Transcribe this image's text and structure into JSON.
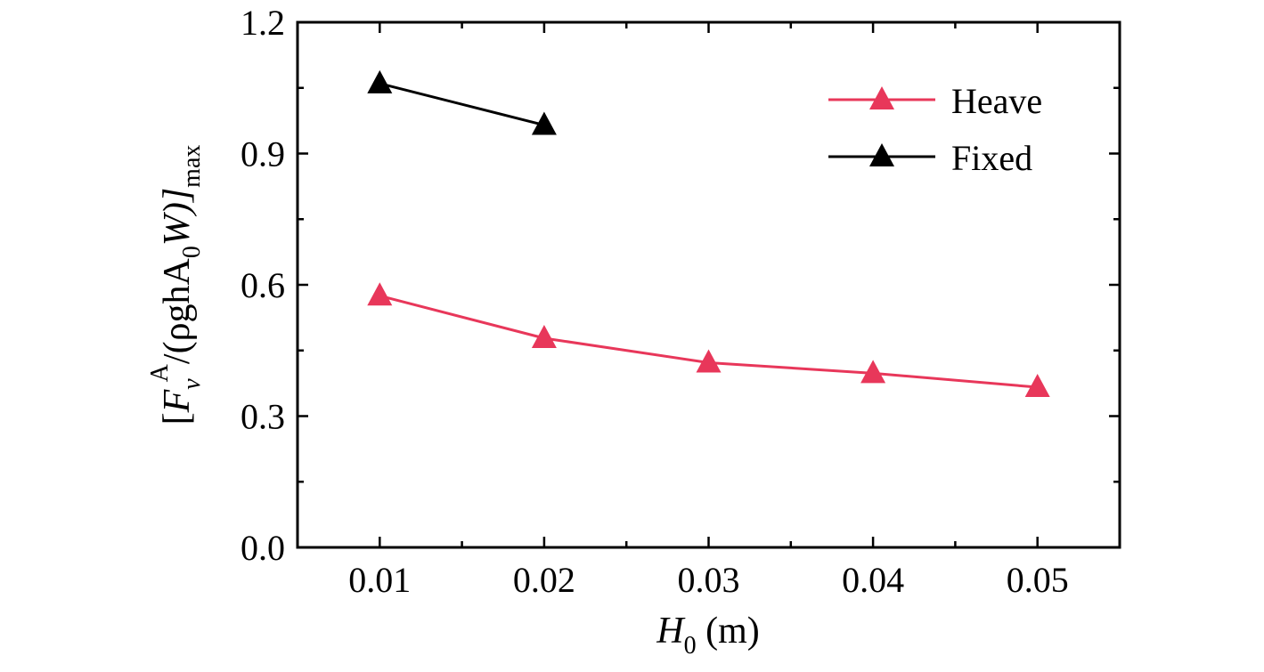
{
  "chart_data": {
    "type": "line",
    "x": [
      0.01,
      0.02,
      0.03,
      0.04,
      0.05
    ],
    "series": [
      {
        "name": "Heave",
        "color": "#e8375a",
        "marker": "triangle",
        "values": [
          0.575,
          0.478,
          0.422,
          0.398,
          0.366
        ]
      },
      {
        "name": "Fixed",
        "color": "#000000",
        "marker": "triangle",
        "values": [
          1.06,
          0.965,
          null,
          null,
          null
        ]
      }
    ],
    "xlim": [
      0.005,
      0.055
    ],
    "ylim": [
      0.0,
      1.2
    ],
    "xticks": [
      "0.01",
      "0.02",
      "0.03",
      "0.04",
      "0.05"
    ],
    "yticks": [
      "0.0",
      "0.3",
      "0.6",
      "0.9",
      "1.2"
    ],
    "xticks_minor": [
      0.015,
      0.025,
      0.035,
      0.045
    ],
    "yticks_minor": [
      0.15,
      0.45,
      0.75,
      1.05
    ],
    "xlabel": {
      "main": "H",
      "sub": "0",
      "unit": " (m)"
    },
    "ylabel": {
      "open": "[",
      "F": "F",
      "sub_v": "v",
      "sup_A": "A",
      "rest1": "/(ρghA",
      "sub_0": "0",
      "rest2": "W)]",
      "sub_max": "max"
    },
    "legend": {
      "position": "top-right"
    },
    "grid": false
  }
}
